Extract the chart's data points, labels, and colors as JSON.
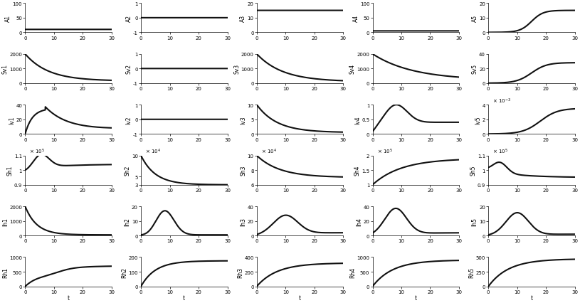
{
  "T": 30,
  "dt": 0.01,
  "row_labels": [
    [
      "A1",
      "A2",
      "A3",
      "A4",
      "A5"
    ],
    [
      "Sv1",
      "Sv2",
      "Sv3",
      "Sv4",
      "Sv5"
    ],
    [
      "Iv1",
      "Iv2",
      "Iv3",
      "Iv4",
      "Iv5"
    ],
    [
      "Sh1",
      "Sh2",
      "Sh3",
      "Sh4",
      "Sh5"
    ],
    [
      "Ih1",
      "Ih2",
      "Ih3",
      "Ih4",
      "Ih5"
    ],
    [
      "Rh1",
      "Rh2",
      "Rh3",
      "Rh4",
      "Rh5"
    ]
  ],
  "ylims": [
    [
      [
        0,
        100
      ],
      [
        -1,
        1
      ],
      [
        0,
        20
      ],
      [
        0,
        100
      ],
      [
        0,
        20
      ]
    ],
    [
      [
        0,
        2000
      ],
      [
        -1,
        1
      ],
      [
        0,
        2000
      ],
      [
        0,
        2000
      ],
      [
        0,
        40
      ]
    ],
    [
      [
        0,
        40
      ],
      [
        -1,
        1
      ],
      [
        0,
        10
      ],
      [
        0,
        1
      ],
      [
        0,
        0.004
      ]
    ],
    [
      [
        0.9,
        1.1
      ],
      [
        3,
        10
      ],
      [
        6,
        10
      ],
      [
        1,
        2
      ],
      [
        0.9,
        1.1
      ]
    ],
    [
      [
        0,
        2000
      ],
      [
        0,
        20
      ],
      [
        0,
        40
      ],
      [
        0,
        40
      ],
      [
        0,
        20
      ]
    ],
    [
      [
        0,
        1000
      ],
      [
        0,
        200
      ],
      [
        0,
        400
      ],
      [
        0,
        1000
      ],
      [
        0,
        500
      ]
    ]
  ],
  "sh_scales": [
    100000,
    10000,
    10000,
    100000,
    100000
  ],
  "sh_exps": [
    5,
    4,
    4,
    5,
    5
  ],
  "sh_yticks": [
    [
      [
        0.9,
        1.0,
        1.1
      ],
      [
        "0.9",
        "1",
        "1.1"
      ]
    ],
    [
      [
        3,
        5,
        10
      ],
      [
        "3",
        "5",
        "10"
      ]
    ],
    [
      [
        6,
        8,
        10
      ],
      [
        "6",
        "8",
        "10"
      ]
    ],
    [
      [
        1,
        1.5,
        2
      ],
      [
        "1",
        "1.5",
        "2"
      ]
    ],
    [
      [
        0.9,
        1.0,
        1.1
      ],
      [
        "0.9",
        "1",
        "1.1"
      ]
    ]
  ],
  "xlabel": "t",
  "line_color": "#111111",
  "line_width": 1.5,
  "background_color": "#ffffff",
  "tick_fontsize": 5,
  "label_fontsize": 5.5
}
